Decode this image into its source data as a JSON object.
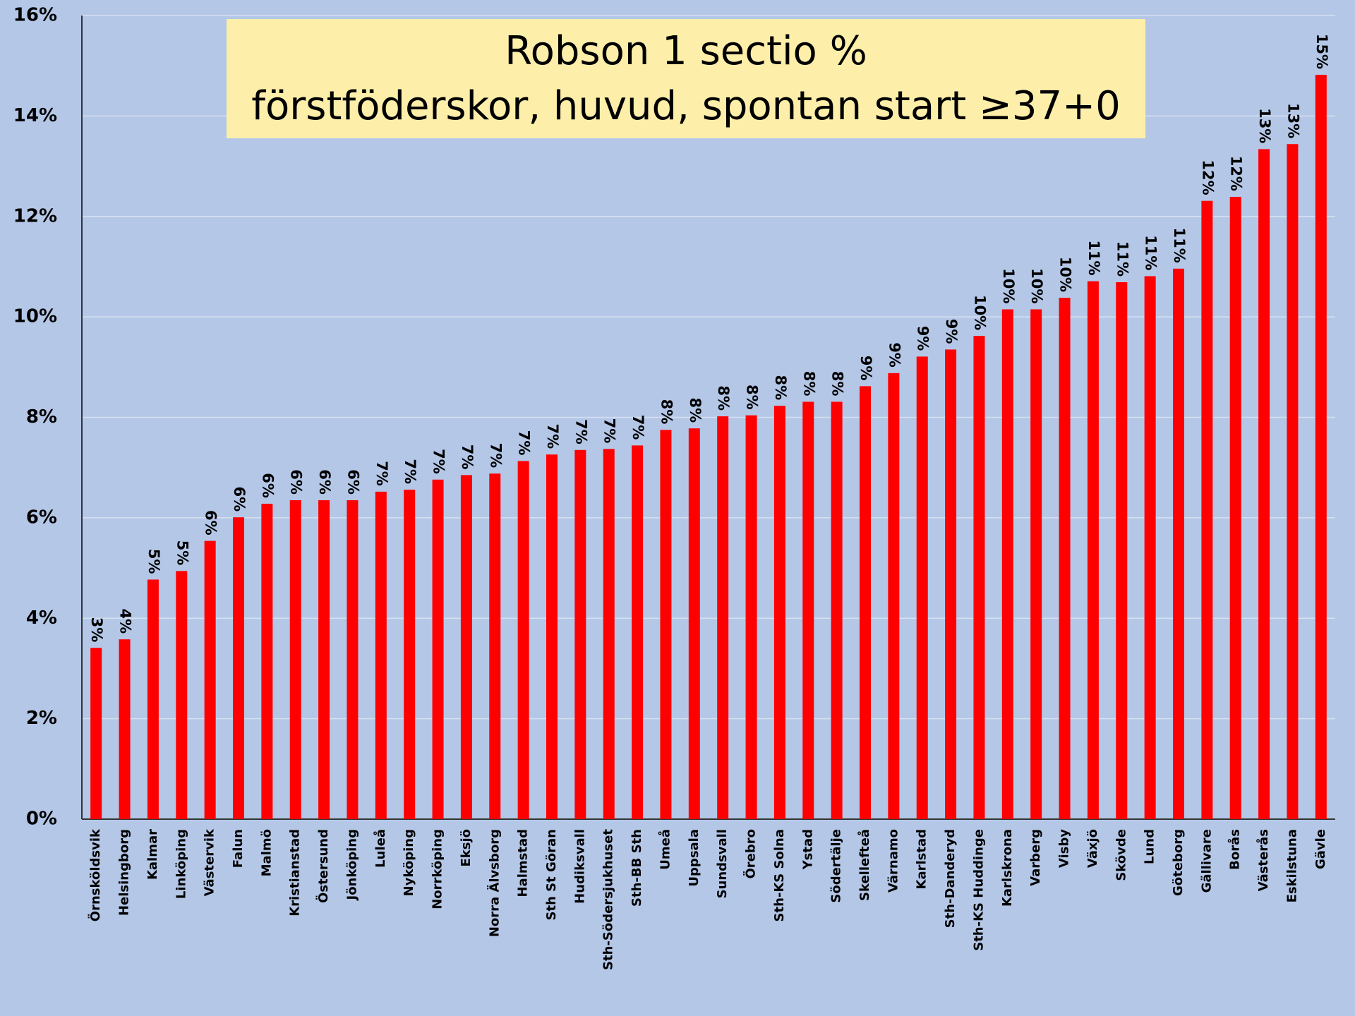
{
  "chart_data": {
    "type": "bar",
    "title": "Robson 1 sectio %",
    "subtitle": "förstföderskor, huvud, spontan start ≥37+0",
    "categories": [
      "Örnsköldsvik",
      "Helsingborg",
      "Kalmar",
      "Linköping",
      "Västervik",
      "Falun",
      "Malmö",
      "Kristianstad",
      "Östersund",
      "Jönköping",
      "Luleå",
      "Nyköping",
      "Norrköping",
      "Eksjö",
      "Norra Älvsborg",
      "Halmstad",
      "Sth St Göran",
      "Hudiksvall",
      "Sth-Södersjukhuset",
      "Sth-BB Sth",
      "Umeå",
      "Uppsala",
      "Sundsvall",
      "Örebro",
      "Sth-KS Solna",
      "Ystad",
      "Södertälje",
      "Skellefteå",
      "Värnamo",
      "Karlstad",
      "Sth-Danderyd",
      "Sth-KS Huddinge",
      "Karlskrona",
      "Varberg",
      "Visby",
      "Växjö",
      "Skövde",
      "Lund",
      "Göteborg",
      "Gällivare",
      "Borås",
      "Västerås",
      "Eskilstuna",
      "Gävle"
    ],
    "values": [
      3.41,
      3.58,
      4.77,
      4.94,
      5.54,
      6.01,
      6.28,
      6.35,
      6.35,
      6.35,
      6.52,
      6.56,
      6.76,
      6.85,
      6.88,
      7.13,
      7.26,
      7.35,
      7.37,
      7.44,
      7.75,
      7.78,
      8.02,
      8.04,
      8.23,
      8.31,
      8.31,
      8.62,
      8.88,
      9.21,
      9.35,
      9.62,
      10.15,
      10.15,
      10.38,
      10.71,
      10.69,
      10.81,
      10.96,
      12.31,
      12.39,
      13.34,
      13.44,
      14.82
    ],
    "value_labels": [
      "3%",
      "4%",
      "5%",
      "5%",
      "6%",
      "6%",
      "6%",
      "6%",
      "6%",
      "6%",
      "7%",
      "7%",
      "7%",
      "7%",
      "7%",
      "7%",
      "7%",
      "7%",
      "7%",
      "7%",
      "8%",
      "8%",
      "8%",
      "8%",
      "8%",
      "8%",
      "8%",
      "9%",
      "9%",
      "9%",
      "9%",
      "10%",
      "10%",
      "10%",
      "10%",
      "11%",
      "11%",
      "11%",
      "11%",
      "12%",
      "12%",
      "13%",
      "13%",
      "15%"
    ],
    "color": "#ff0000",
    "ylim": [
      0,
      16
    ],
    "yticks": [
      {
        "value": 0,
        "label": "0%"
      },
      {
        "value": 2,
        "label": "2%"
      },
      {
        "value": 4,
        "label": "4%"
      },
      {
        "value": 6,
        "label": "6%"
      },
      {
        "value": 8,
        "label": "8%"
      },
      {
        "value": 10,
        "label": "10%"
      },
      {
        "value": 12,
        "label": "12%"
      },
      {
        "value": 14,
        "label": "14%"
      },
      {
        "value": 16,
        "label": "16%"
      }
    ],
    "grid": true
  }
}
